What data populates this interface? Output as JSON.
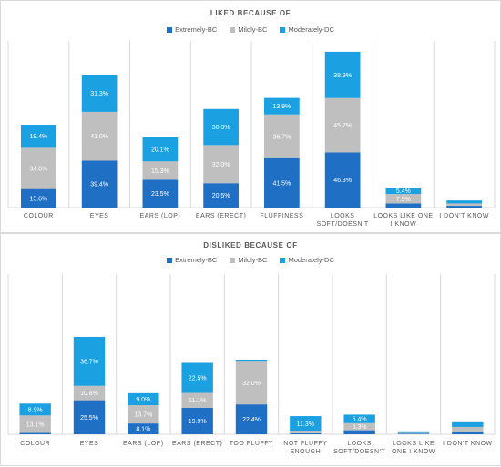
{
  "colors": {
    "extremely": "#1f6fc5",
    "mildly": "#bfbfbf",
    "moderately": "#1ba1e2",
    "grid": "#d9d9d9",
    "label_dark": "#ffffff",
    "axis_text": "#595959"
  },
  "chart_data": [
    {
      "type": "bar",
      "stacked": true,
      "title": "LIKED BECAUSE OF",
      "legend_position": "top",
      "categories": [
        [
          "COLOUR"
        ],
        [
          "EYES"
        ],
        [
          "EARS (LOP)"
        ],
        [
          "EARS (ERECT)"
        ],
        [
          "FLUFFINESS"
        ],
        [
          "LOOKS",
          "SOFT/DOESN'T"
        ],
        [
          "LOOKS LIKE ONE",
          "I KNOW"
        ],
        [
          "I DON'T KNOW"
        ]
      ],
      "series": [
        {
          "name": "Extremely-BC",
          "values": [
            15.6,
            39.4,
            23.5,
            20.5,
            41.5,
            46.3,
            3.5,
            1.5
          ],
          "labels": [
            "15.6%",
            "39.4%",
            "23.5%",
            "20.5%",
            "41.5%",
            "46.3%",
            "",
            ""
          ]
        },
        {
          "name": "Mildly-BC",
          "values": [
            34.6,
            41.0,
            15.3,
            32.0,
            36.7,
            45.7,
            7.9,
            2.0
          ],
          "labels": [
            "34.6%",
            "41.0%",
            "15.3%",
            "32.0%",
            "36.7%",
            "45.7%",
            "7.9%",
            ""
          ]
        },
        {
          "name": "Moderately-DC",
          "values": [
            19.4,
            31.3,
            20.1,
            30.3,
            13.9,
            38.9,
            5.4,
            2.5
          ],
          "labels": [
            "19.4%",
            "31.3%",
            "20.1%",
            "30.3%",
            "13.9%",
            "38.9%",
            "5.4%",
            ""
          ]
        }
      ],
      "ylim": [
        0,
        140
      ],
      "grid": "vertical separators"
    },
    {
      "type": "bar",
      "stacked": true,
      "title": "DISLIKED BECAUSE OF",
      "legend_position": "top",
      "categories": [
        [
          "COLOUR"
        ],
        [
          "EYES"
        ],
        [
          "EARS (LOP)"
        ],
        [
          "EARS (ERECT)"
        ],
        [
          "TOO FLUFFY"
        ],
        [
          "NOT FLUFFY",
          "ENOUGH"
        ],
        [
          "LOOKS",
          "SOFT/DOESN'T"
        ],
        [
          "LOOKS LIKE",
          "ONE I KNOW"
        ],
        [
          "I DON'T KNOW"
        ]
      ],
      "series": [
        {
          "name": "Extremely-BC",
          "values": [
            1.0,
            25.5,
            8.1,
            19.9,
            22.4,
            0.8,
            3.0,
            0.5,
            1.5
          ],
          "labels": [
            "",
            "25.5%",
            "8.1%",
            "19.9%",
            "22.4%",
            "",
            "",
            "",
            ""
          ]
        },
        {
          "name": "Mildly-BC",
          "values": [
            13.1,
            10.8,
            13.7,
            11.1,
            32.0,
            1.5,
            5.3,
            0.5,
            4.0
          ],
          "labels": [
            "13.1%",
            "10.8%",
            "13.7%",
            "11.1%",
            "32.0%",
            "",
            "5.3%",
            "",
            ""
          ]
        },
        {
          "name": "Moderately-DC",
          "values": [
            8.9,
            36.7,
            9.0,
            22.5,
            1.0,
            11.3,
            6.4,
            0.5,
            3.5
          ],
          "labels": [
            "8.9%",
            "36.7%",
            "9.0%",
            "22.5%",
            "",
            "11.3%",
            "6.4%",
            "",
            ""
          ]
        }
      ],
      "ylim": [
        0,
        120
      ],
      "grid": "vertical separators"
    }
  ]
}
